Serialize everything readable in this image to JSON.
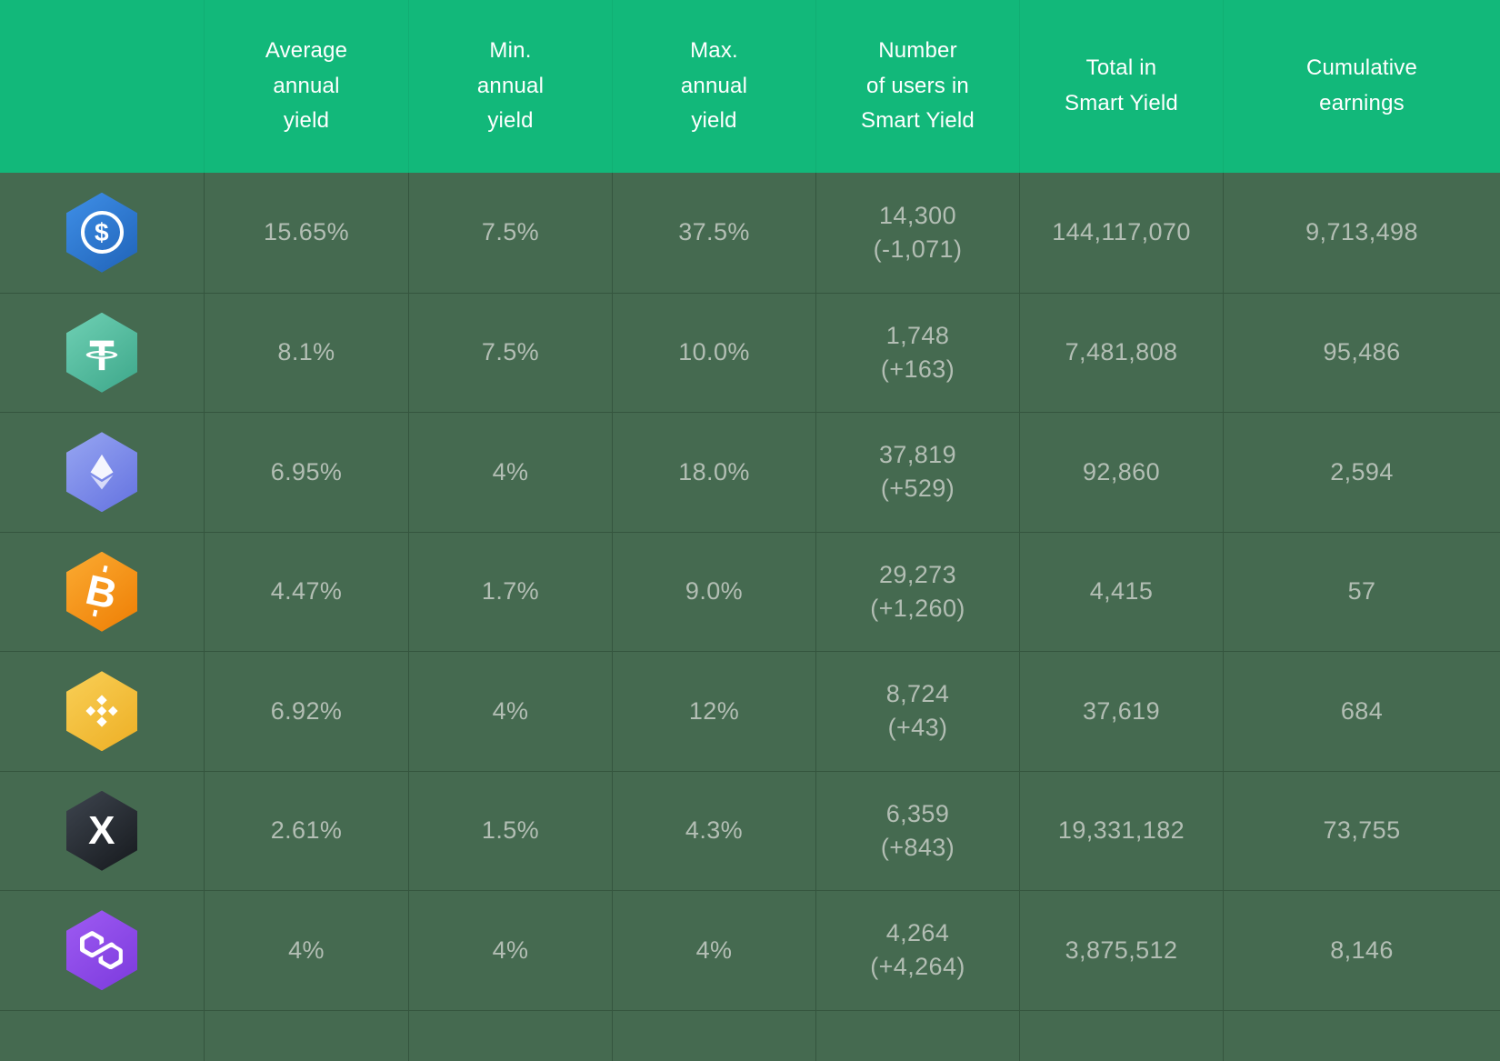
{
  "colors": {
    "header_bg": "#12b87a",
    "body_bg": "#456a50",
    "grid_line": "#35553e",
    "header_text": "#ffffff",
    "body_text": "#b3beb4"
  },
  "chart_data": {
    "type": "table",
    "columns": [
      "",
      "Average annual yield",
      "Min. annual yield",
      "Max. annual yield",
      "Number of users in Smart Yield",
      "Total in Smart Yield",
      "Cumulative earnings"
    ],
    "rows": [
      [
        "USDC",
        "15.65%",
        "7.5%",
        "37.5%",
        "14,300 (-1,071)",
        "144,117,070",
        "9,713,498"
      ],
      [
        "USDT",
        "8.1%",
        "7.5%",
        "10.0%",
        "1,748 (+163)",
        "7,481,808",
        "95,486"
      ],
      [
        "ETH",
        "6.95%",
        "4%",
        "18.0%",
        "37,819 (+529)",
        "92,860",
        "2,594"
      ],
      [
        "BTC",
        "4.47%",
        "1.7%",
        "9.0%",
        "29,273 (+1,260)",
        "4,415",
        "57"
      ],
      [
        "BNB",
        "6.92%",
        "4%",
        "12%",
        "8,724 (+43)",
        "37,619",
        "684"
      ],
      [
        "XRP",
        "2.61%",
        "1.5%",
        "4.3%",
        "6,359 (+843)",
        "19,331,182",
        "73,755"
      ],
      [
        "MATIC",
        "4%",
        "4%",
        "4%",
        "4,264 (+4,264)",
        "3,875,512",
        "8,146"
      ]
    ]
  },
  "table": {
    "columns": [
      "Average\nannual\nyield",
      "Min.\nannual\nyield",
      "Max.\nannual\nyield",
      "Number\nof users in\nSmart Yield",
      "Total in\nSmart Yield",
      "Cumulative\nearnings"
    ],
    "rows": [
      {
        "coin": "usdc",
        "icon": "usdc-coin-icon",
        "icon_colors": [
          "#3f8fe7",
          "#2063b8"
        ],
        "avg": "15.65%",
        "min": "7.5%",
        "max": "37.5%",
        "users": "14,300",
        "users_delta": "(-1,071)",
        "total": "144,117,070",
        "earnings": "9,713,498"
      },
      {
        "coin": "usdt",
        "icon": "tether-coin-icon",
        "icon_colors": [
          "#6fd0b4",
          "#3da78a"
        ],
        "avg": "8.1%",
        "min": "7.5%",
        "max": "10.0%",
        "users": "1,748",
        "users_delta": "(+163)",
        "total": "7,481,808",
        "earnings": "95,486"
      },
      {
        "coin": "eth",
        "icon": "ethereum-coin-icon",
        "icon_colors": [
          "#97a6f2",
          "#6472e0"
        ],
        "avg": "6.95%",
        "min": "4%",
        "max": "18.0%",
        "users": "37,819",
        "users_delta": "(+529)",
        "total": "92,860",
        "earnings": "2,594"
      },
      {
        "coin": "btc",
        "icon": "bitcoin-coin-icon",
        "icon_colors": [
          "#fbab32",
          "#ee7e04"
        ],
        "avg": "4.47%",
        "min": "1.7%",
        "max": "9.0%",
        "users": "29,273",
        "users_delta": "(+1,260)",
        "total": "4,415",
        "earnings": "57"
      },
      {
        "coin": "bnb",
        "icon": "bnb-coin-icon",
        "icon_colors": [
          "#f9cf56",
          "#edaf25"
        ],
        "avg": "6.92%",
        "min": "4%",
        "max": "12%",
        "users": "8,724",
        "users_delta": "(+43)",
        "total": "37,619",
        "earnings": "684"
      },
      {
        "coin": "xrp",
        "icon": "xrp-coin-icon",
        "icon_colors": [
          "#3e454f",
          "#16191d"
        ],
        "avg": "2.61%",
        "min": "1.5%",
        "max": "4.3%",
        "users": "6,359",
        "users_delta": "(+843)",
        "total": "19,331,182",
        "earnings": "73,755"
      },
      {
        "coin": "matic",
        "icon": "polygon-coin-icon",
        "icon_colors": [
          "#9e5bf2",
          "#7c3add"
        ],
        "avg": "4%",
        "min": "4%",
        "max": "4%",
        "users": "4,264",
        "users_delta": "(+4,264)",
        "total": "3,875,512",
        "earnings": "8,146"
      }
    ]
  }
}
